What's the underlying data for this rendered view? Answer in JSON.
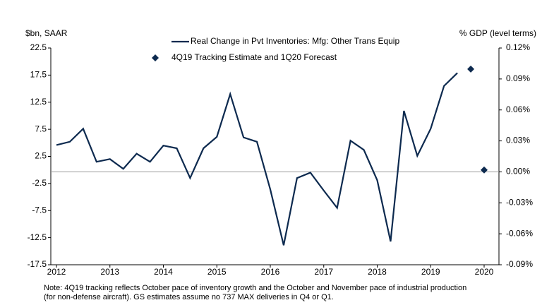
{
  "chart_data": {
    "type": "line",
    "y_label": "$bn, SAAR",
    "y2_label": "% GDP (level terms)",
    "note": [
      "Note: 4Q19 tracking reflects October pace of inventory growth and the October and November pace of industrial production",
      "(for non-defense aircraft). GS estimates assume no 737 MAX deliveries in Q4 or Q1."
    ],
    "xlim": [
      2012,
      2020
    ],
    "xticks": [
      2012,
      2013,
      2014,
      2015,
      2016,
      2017,
      2018,
      2019,
      2020
    ],
    "ylim": [
      -17.5,
      22.5
    ],
    "yticks": [
      22.5,
      17.5,
      12.5,
      7.5,
      2.5,
      -2.5,
      -7.5,
      -12.5,
      -17.5
    ],
    "y2lim": [
      -0.09,
      0.12
    ],
    "y2ticks": [
      {
        "value": 0.12,
        "label": "0.12%"
      },
      {
        "value": 0.09,
        "label": "0.09%"
      },
      {
        "value": 0.06,
        "label": "0.06%"
      },
      {
        "value": 0.03,
        "label": "0.03%"
      },
      {
        "value": 0,
        "label": "0.00%"
      },
      {
        "value": -0.03,
        "label": "-0.03%"
      },
      {
        "value": -0.06,
        "label": "-0.06%"
      },
      {
        "value": -0.09,
        "label": "-0.09%"
      }
    ],
    "series": [
      {
        "name": "Real Change in Pvt Inventories: Mfg: Other Trans Equip",
        "color": "#0d2a4f",
        "style": "line",
        "x": [
          2012,
          2012.25,
          2012.5,
          2012.75,
          2013,
          2013.25,
          2013.5,
          2013.75,
          2014,
          2014.25,
          2014.5,
          2014.75,
          2015,
          2015.25,
          2015.5,
          2015.75,
          2016,
          2016.25,
          2016.5,
          2016.75,
          2017,
          2017.25,
          2017.5,
          2017.75,
          2018,
          2018.25,
          2018.5,
          2018.75,
          2019,
          2019.25,
          2019.5
        ],
        "values": [
          4.6,
          5.2,
          7.6,
          1.5,
          2.0,
          0.2,
          3.0,
          1.5,
          4.5,
          4.0,
          -1.5,
          4.0,
          6.1,
          14.0,
          6.0,
          5.2,
          -3.6,
          -13.9,
          -1.5,
          -0.5,
          -3.8,
          -7.0,
          5.4,
          3.7,
          -1.9,
          -13.2,
          10.9,
          2.6,
          7.6,
          15.5,
          17.9
        ]
      },
      {
        "name": "4Q19 Tracking Estimate and 1Q20 Forecast",
        "color": "#0d2a4f",
        "style": "diamond",
        "x": [
          2019.75,
          2020
        ],
        "values": [
          18.6,
          0
        ]
      }
    ]
  }
}
